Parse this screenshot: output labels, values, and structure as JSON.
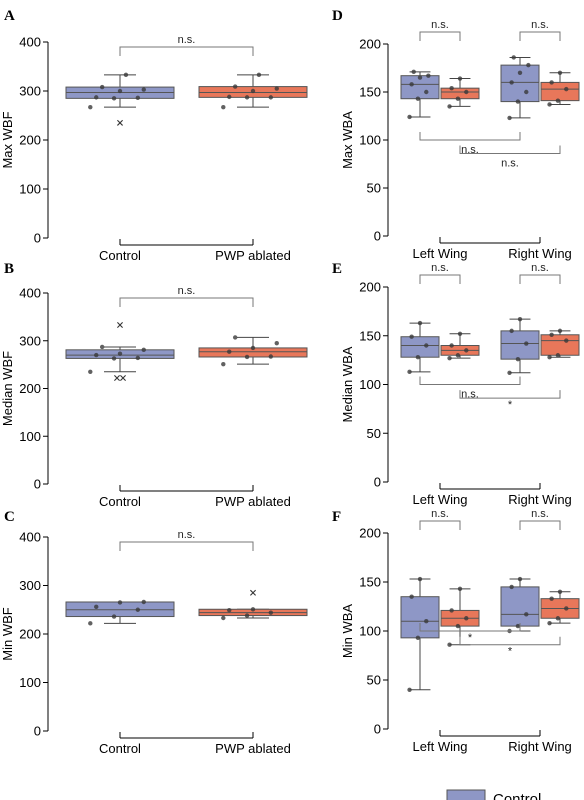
{
  "colors": {
    "control": "#8e97c6",
    "pwp": "#e8775a",
    "bracket": "#777777",
    "point": "#3a3a3a"
  },
  "legend": {
    "items": [
      {
        "label": "Control",
        "color": "#8e97c6"
      }
    ]
  },
  "chart_data": [
    {
      "id": "A",
      "letter": "A",
      "type": "box",
      "ylabel": "Max WBF",
      "ylim": [
        0,
        400
      ],
      "yticks": [
        0,
        100,
        200,
        300,
        400
      ],
      "groups": [
        {
          "label": "Control",
          "boxes": [
            {
              "series": "Control",
              "q1": 285,
              "median": 297,
              "q3": 308,
              "whisker_low": 267,
              "whisker_high": 333,
              "points": [
                267,
                285,
                286,
                287,
                300,
                303,
                308,
                333
              ],
              "outliers": [
                235
              ]
            }
          ]
        },
        {
          "label": "PWP ablated",
          "boxes": [
            {
              "series": "PWP ablated",
              "q1": 287,
              "median": 297,
              "q3": 309,
              "whisker_low": 267,
              "whisker_high": 333,
              "points": [
                267,
                287,
                287,
                288,
                300,
                305,
                309,
                333
              ],
              "outliers": []
            }
          ]
        }
      ],
      "brackets": [
        {
          "label": "n.s.",
          "kind": "top",
          "from": 0,
          "to": 1,
          "level": 397
        }
      ]
    },
    {
      "id": "B",
      "letter": "B",
      "type": "box",
      "ylabel": "Median WBF",
      "ylim": [
        0,
        400
      ],
      "yticks": [
        0,
        100,
        200,
        300,
        400
      ],
      "groups": [
        {
          "label": "Control",
          "boxes": [
            {
              "series": "Control",
              "q1": 263,
              "median": 270,
              "q3": 281,
              "whisker_low": 235,
              "whisker_high": 287,
              "points": [
                235,
                263,
                264,
                270,
                273,
                281,
                287
              ],
              "outliers": [
                333,
                222,
                222
              ]
            }
          ]
        },
        {
          "label": "PWP ablated",
          "boxes": [
            {
              "series": "PWP ablated",
              "q1": 266,
              "median": 277,
              "q3": 285,
              "whisker_low": 251,
              "whisker_high": 307,
              "points": [
                251,
                266,
                267,
                277,
                285,
                295,
                307
              ],
              "outliers": []
            }
          ]
        }
      ],
      "brackets": [
        {
          "label": "n.s.",
          "kind": "top",
          "from": 0,
          "to": 1,
          "level": 397
        }
      ]
    },
    {
      "id": "C",
      "letter": "C",
      "type": "box",
      "ylabel": "Min WBF",
      "ylim": [
        0,
        400
      ],
      "yticks": [
        0,
        100,
        200,
        300,
        400
      ],
      "groups": [
        {
          "label": "Control",
          "boxes": [
            {
              "series": "Control",
              "q1": 236,
              "median": 250,
              "q3": 266,
              "whisker_low": 222,
              "whisker_high": 266,
              "points": [
                222,
                236,
                250,
                256,
                265,
                266
              ],
              "outliers": []
            }
          ]
        },
        {
          "label": "PWP ablated",
          "boxes": [
            {
              "series": "PWP ablated",
              "q1": 238,
              "median": 244,
              "q3": 251,
              "whisker_low": 233,
              "whisker_high": 251,
              "points": [
                233,
                238,
                244,
                249,
                251
              ],
              "outliers": [
                285
              ]
            }
          ]
        }
      ],
      "brackets": [
        {
          "label": "n.s.",
          "kind": "top",
          "from": 0,
          "to": 1,
          "level": 397
        }
      ]
    },
    {
      "id": "D",
      "letter": "D",
      "type": "box",
      "ylabel": "Max WBA",
      "ylim": [
        0,
        200
      ],
      "yticks": [
        0,
        50,
        100,
        150,
        200
      ],
      "groups": [
        {
          "label": "Left Wing",
          "boxes": [
            {
              "series": "Control",
              "q1": 143,
              "median": 158,
              "q3": 167,
              "whisker_low": 124,
              "whisker_high": 171,
              "points": [
                124,
                143,
                150,
                158,
                165,
                167,
                171
              ],
              "outliers": []
            },
            {
              "series": "PWP ablated",
              "q1": 143,
              "median": 150,
              "q3": 154,
              "whisker_low": 135,
              "whisker_high": 164,
              "points": [
                135,
                143,
                150,
                154,
                164
              ],
              "outliers": []
            }
          ]
        },
        {
          "label": "Right Wing",
          "boxes": [
            {
              "series": "Control",
              "q1": 140,
              "median": 160,
              "q3": 178,
              "whisker_low": 123,
              "whisker_high": 186,
              "points": [
                123,
                140,
                150,
                160,
                170,
                178,
                186
              ],
              "outliers": []
            },
            {
              "series": "PWP ablated",
              "q1": 141,
              "median": 153,
              "q3": 160,
              "whisker_low": 137,
              "whisker_high": 170,
              "points": [
                137,
                141,
                153,
                160,
                170
              ],
              "outliers": []
            }
          ]
        }
      ],
      "brackets": [
        {
          "label": "n.s.",
          "kind": "pair",
          "group": 0
        },
        {
          "label": "n.s.",
          "kind": "pair",
          "group": 1
        },
        {
          "label": "n.s.",
          "kind": "across",
          "from": "0c",
          "to": "1c",
          "level": 100
        },
        {
          "label": "n.s.",
          "kind": "across",
          "from": "0p",
          "to": "1p",
          "level": 86
        }
      ]
    },
    {
      "id": "E",
      "letter": "E",
      "type": "box",
      "ylabel": "Median WBA",
      "ylim": [
        0,
        200
      ],
      "yticks": [
        0,
        50,
        100,
        150,
        200
      ],
      "groups": [
        {
          "label": "Left Wing",
          "boxes": [
            {
              "series": "Control",
              "q1": 128,
              "median": 140,
              "q3": 149,
              "whisker_low": 113,
              "whisker_high": 163,
              "points": [
                113,
                128,
                140,
                149,
                163
              ],
              "outliers": []
            },
            {
              "series": "PWP ablated",
              "q1": 130,
              "median": 135,
              "q3": 140,
              "whisker_low": 127,
              "whisker_high": 152,
              "points": [
                127,
                130,
                135,
                140,
                152
              ],
              "outliers": []
            }
          ]
        },
        {
          "label": "Right Wing",
          "boxes": [
            {
              "series": "Control",
              "q1": 126,
              "median": 142,
              "q3": 155,
              "whisker_low": 112,
              "whisker_high": 167,
              "points": [
                112,
                126,
                142,
                155,
                167
              ],
              "outliers": []
            },
            {
              "series": "PWP ablated",
              "q1": 130,
              "median": 145,
              "q3": 151,
              "whisker_low": 128,
              "whisker_high": 155,
              "points": [
                128,
                130,
                145,
                151,
                155
              ],
              "outliers": []
            }
          ]
        }
      ],
      "brackets": [
        {
          "label": "n.s.",
          "kind": "pair",
          "group": 0
        },
        {
          "label": "n.s.",
          "kind": "pair",
          "group": 1
        },
        {
          "label": "n.s.",
          "kind": "across",
          "from": "0c",
          "to": "1c",
          "level": 100
        },
        {
          "label": "*",
          "kind": "across",
          "from": "0p",
          "to": "1p",
          "level": 86
        }
      ]
    },
    {
      "id": "F",
      "letter": "F",
      "type": "box",
      "ylabel": "Min WBA",
      "ylim": [
        0,
        200
      ],
      "yticks": [
        0,
        50,
        100,
        150,
        200
      ],
      "groups": [
        {
          "label": "Left Wing",
          "boxes": [
            {
              "series": "Control",
              "q1": 93,
              "median": 110,
              "q3": 135,
              "whisker_low": 40,
              "whisker_high": 153,
              "points": [
                40,
                93,
                110,
                135,
                153
              ],
              "outliers": []
            },
            {
              "series": "PWP ablated",
              "q1": 105,
              "median": 113,
              "q3": 121,
              "whisker_low": 86,
              "whisker_high": 143,
              "points": [
                86,
                105,
                113,
                121,
                143
              ],
              "outliers": []
            }
          ]
        },
        {
          "label": "Right Wing",
          "boxes": [
            {
              "series": "Control",
              "q1": 105,
              "median": 117,
              "q3": 145,
              "whisker_low": 100,
              "whisker_high": 153,
              "points": [
                100,
                105,
                117,
                145,
                153
              ],
              "outliers": []
            },
            {
              "series": "PWP ablated",
              "q1": 113,
              "median": 123,
              "q3": 133,
              "whisker_low": 108,
              "whisker_high": 140,
              "points": [
                108,
                113,
                123,
                133,
                140
              ],
              "outliers": []
            }
          ]
        }
      ],
      "brackets": [
        {
          "label": "n.s.",
          "kind": "pair",
          "group": 0
        },
        {
          "label": "n.s.",
          "kind": "pair",
          "group": 1
        },
        {
          "label": "*",
          "kind": "across",
          "from": "0c",
          "to": "1c",
          "level": 100
        },
        {
          "label": "*",
          "kind": "across",
          "from": "0p",
          "to": "1p",
          "level": 86
        }
      ]
    }
  ]
}
